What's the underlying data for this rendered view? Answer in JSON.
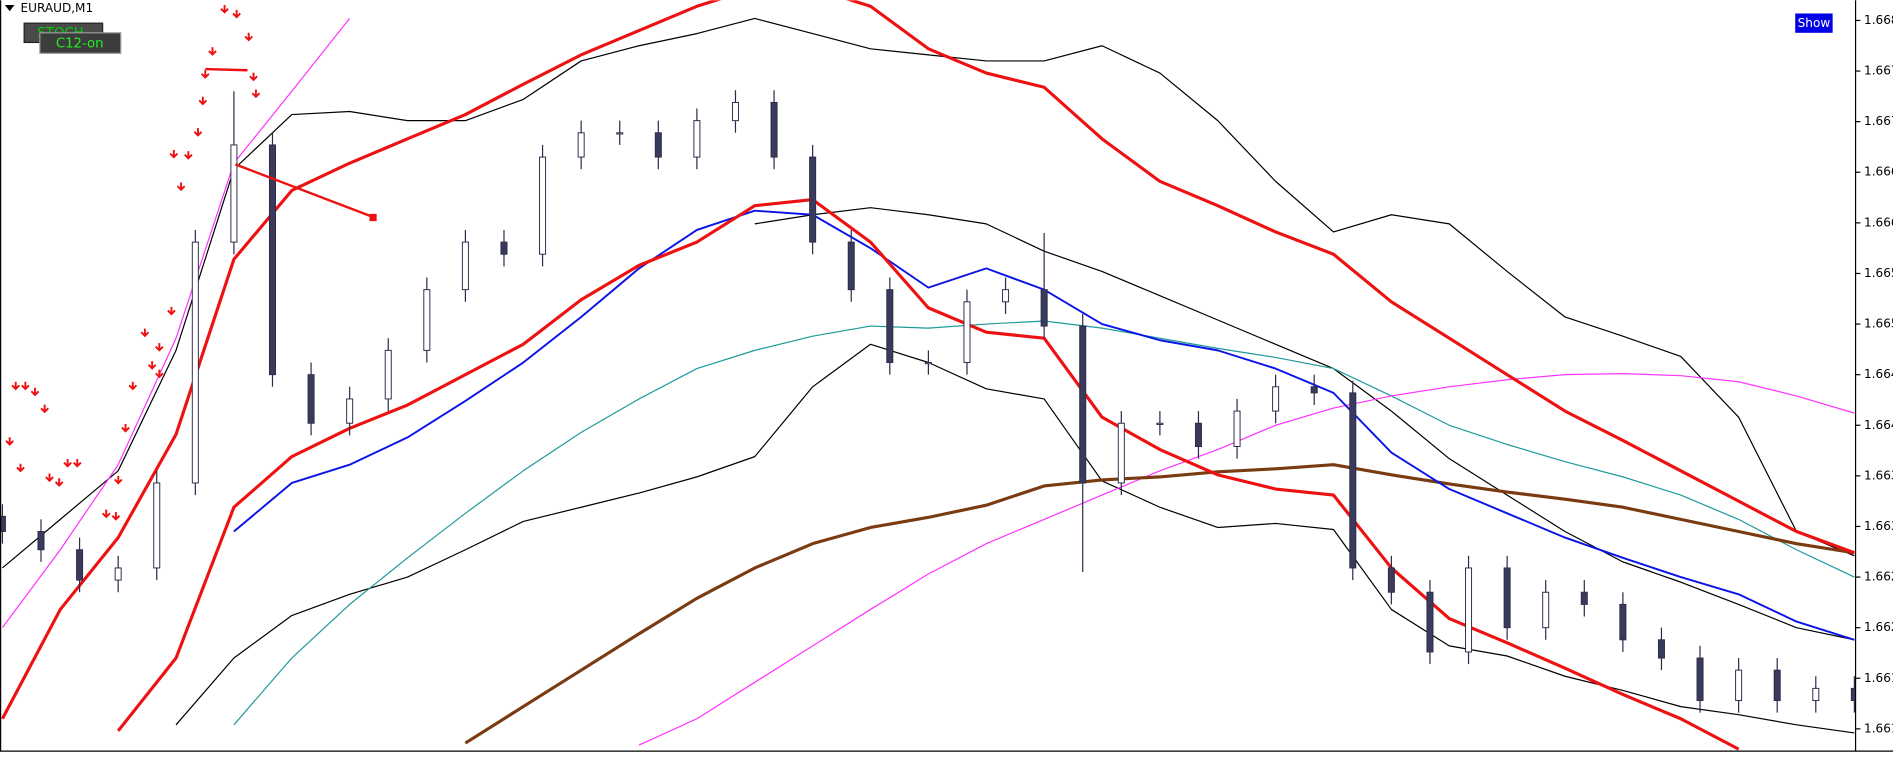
{
  "ui": {
    "symbol": "EURAUD,M1",
    "indicator_label": "STOCH",
    "button_label": "C12-on",
    "show_button": "Show"
  },
  "chart_data": {
    "type": "candlestick",
    "xlim": [
      0,
      192
    ],
    "ylim": [
      1.66078,
      1.6682
    ],
    "yticks": [
      1.668,
      {
        "value": 1.6675,
        "label": "1.667"
      },
      1.667,
      {
        "value": 1.6665,
        "label": "1.666"
      },
      1.666,
      {
        "value": 1.6655,
        "label": "1.665"
      },
      1.665,
      {
        "value": 1.6645,
        "label": "1.664"
      },
      1.664,
      {
        "value": 1.6635,
        "label": "1.663"
      },
      1.663,
      {
        "value": 1.6625,
        "label": "1.662"
      },
      1.662,
      {
        "value": 1.6615,
        "label": "1.661"
      },
      1.661
    ],
    "up_color": "#ffffff",
    "down_color": "#3a3a5c",
    "outline_color": "#2b2b4a",
    "x": [
      0,
      4,
      8,
      12,
      16,
      20,
      24,
      28,
      32,
      36,
      40,
      44,
      48,
      52,
      56,
      60,
      64,
      68,
      72,
      76,
      80,
      84,
      88,
      92,
      96,
      100,
      104,
      108,
      112,
      116,
      120,
      124,
      128,
      132,
      136,
      140,
      144,
      148,
      152,
      156,
      160,
      164,
      168,
      172,
      176,
      180,
      184,
      188,
      192
    ],
    "open": [
      1.6631,
      1.66295,
      1.66277,
      1.66247,
      1.66259,
      1.66343,
      1.66581,
      1.66677,
      1.6645,
      1.66402,
      1.66426,
      1.66474,
      1.66534,
      1.66581,
      1.66569,
      1.66665,
      1.66689,
      1.66689,
      1.66665,
      1.66701,
      1.66719,
      1.66665,
      1.66581,
      1.66534,
      1.66462,
      1.66462,
      1.66522,
      1.66534,
      1.66498,
      1.66343,
      1.66402,
      1.66402,
      1.66379,
      1.66414,
      1.66438,
      1.66432,
      1.66259,
      1.66235,
      1.66176,
      1.66259,
      1.662,
      1.66235,
      1.66223,
      1.66188,
      1.6617,
      1.66128,
      1.66158,
      1.66128,
      1.6614
    ],
    "high": [
      1.66322,
      1.66307,
      1.66289,
      1.66271,
      1.66355,
      1.66593,
      1.6673,
      1.66689,
      1.66462,
      1.66438,
      1.66486,
      1.66546,
      1.66593,
      1.66593,
      1.66677,
      1.66701,
      1.66701,
      1.66701,
      1.66713,
      1.66731,
      1.66731,
      1.66677,
      1.66593,
      1.66546,
      1.66474,
      1.66534,
      1.66546,
      1.6659,
      1.6651,
      1.66414,
      1.66414,
      1.66414,
      1.66426,
      1.6645,
      1.6645,
      1.66444,
      1.66271,
      1.66247,
      1.66271,
      1.66271,
      1.66247,
      1.66247,
      1.66235,
      1.662,
      1.66182,
      1.6617,
      1.6617,
      1.66152,
      1.66152
    ],
    "low": [
      1.66283,
      1.66265,
      1.66235,
      1.66235,
      1.66247,
      1.66331,
      1.66569,
      1.66438,
      1.6639,
      1.6639,
      1.66414,
      1.66462,
      1.66522,
      1.66557,
      1.66557,
      1.66653,
      1.66677,
      1.66653,
      1.66653,
      1.66689,
      1.66653,
      1.66569,
      1.66522,
      1.6645,
      1.6645,
      1.6645,
      1.6651,
      1.66486,
      1.66255,
      1.66331,
      1.6639,
      1.66367,
      1.66367,
      1.66402,
      1.6642,
      1.66247,
      1.66223,
      1.66164,
      1.66164,
      1.66188,
      1.66188,
      1.66211,
      1.66176,
      1.66158,
      1.66116,
      1.66116,
      1.66116,
      1.66116,
      1.66116
    ],
    "close": [
      1.66295,
      1.66277,
      1.66247,
      1.66259,
      1.66343,
      1.66581,
      1.66677,
      1.6645,
      1.66402,
      1.66426,
      1.66474,
      1.66534,
      1.66581,
      1.66569,
      1.66665,
      1.66689,
      1.66689,
      1.66665,
      1.66701,
      1.66719,
      1.66665,
      1.66581,
      1.66534,
      1.66462,
      1.66462,
      1.66522,
      1.66534,
      1.66498,
      1.66343,
      1.66402,
      1.66402,
      1.66379,
      1.66414,
      1.66438,
      1.66432,
      1.66259,
      1.66235,
      1.66176,
      1.66259,
      1.662,
      1.66235,
      1.66223,
      1.66188,
      1.6617,
      1.66128,
      1.66158,
      1.66128,
      1.6614,
      1.66128
    ],
    "overlays": {
      "type": "line",
      "x": [
        0,
        6,
        12,
        18,
        24,
        30,
        36,
        42,
        48,
        54,
        60,
        66,
        72,
        78,
        84,
        90,
        96,
        102,
        108,
        114,
        120,
        126,
        132,
        138,
        144,
        150,
        156,
        162,
        168,
        174,
        180,
        186,
        192
      ],
      "series": [
        {
          "color": "#000000",
          "values": [
            1.66259,
            1.66307,
            1.66355,
            1.66474,
            1.66653,
            1.66707,
            1.6671,
            1.66701,
            1.66701,
            1.66722,
            1.6676,
            1.66775,
            1.66787,
            1.66802,
            1.66787,
            1.66772,
            1.66766,
            1.6676,
            1.6676,
            1.66775,
            1.66748,
            1.66701,
            1.66641,
            1.66591,
            1.66608,
            1.66599,
            1.66552,
            1.66507,
            1.66488,
            1.66468,
            1.66408,
            1.66295,
            1.66271
          ]
        },
        {
          "color": "#000000",
          "values": [
            null,
            null,
            null,
            1.66104,
            1.6617,
            1.66212,
            1.66233,
            1.6625,
            1.66277,
            1.66305,
            1.66319,
            1.66333,
            1.66349,
            1.66369,
            1.66438,
            1.6648,
            1.66462,
            1.66436,
            1.66426,
            1.66345,
            1.66319,
            1.66299,
            1.66303,
            1.66297,
            1.66218,
            1.66182,
            1.66172,
            1.66152,
            1.66138,
            1.66122,
            1.66114,
            1.66104,
            1.66096
          ]
        },
        {
          "color": "#000000",
          "values": [
            null,
            null,
            null,
            null,
            null,
            null,
            null,
            null,
            null,
            null,
            null,
            null,
            null,
            1.66599,
            1.66608,
            1.66615,
            1.66608,
            1.66599,
            1.66572,
            1.66552,
            1.66528,
            1.66504,
            1.6648,
            1.66456,
            1.66414,
            1.66367,
            1.66331,
            1.66295,
            1.66265,
            1.66245,
            1.66223,
            1.662,
            1.66188
          ]
        },
        {
          "color": "#1f9a9a",
          "values": [
            null,
            null,
            null,
            null,
            1.66104,
            1.6617,
            1.66223,
            1.66269,
            1.66313,
            1.66355,
            1.66393,
            1.66426,
            1.66456,
            1.66474,
            1.66488,
            1.66498,
            1.66496,
            1.665,
            1.66503,
            1.66496,
            1.66486,
            1.66476,
            1.66467,
            1.66456,
            1.66429,
            1.664,
            1.66381,
            1.66364,
            1.66349,
            1.66331,
            1.66307,
            1.66277,
            1.6625
          ]
        },
        {
          "color": "#ff33ff",
          "values": [
            1.662,
            1.66277,
            1.66361,
            1.66486,
            1.66659,
            1.6673,
            1.66802,
            null,
            null,
            null,
            null,
            1.66084,
            1.6611,
            1.66146,
            1.66182,
            1.66218,
            1.66253,
            1.66283,
            1.66307,
            1.66331,
            1.66355,
            1.66376,
            1.664,
            1.66417,
            1.66429,
            1.66438,
            1.66445,
            1.6645,
            1.66451,
            1.66449,
            1.66443,
            1.66429,
            1.66412
          ]
        },
        {
          "color": "#7a3b12",
          "values": [
            null,
            null,
            null,
            null,
            null,
            null,
            null,
            null,
            1.66086,
            1.66122,
            1.66158,
            1.66194,
            1.66229,
            1.66259,
            1.66283,
            1.66299,
            1.66309,
            1.66321,
            1.6634,
            1.66346,
            1.66349,
            1.66354,
            1.66357,
            1.66361,
            1.66351,
            1.66342,
            1.66334,
            1.66327,
            1.66319,
            1.66307,
            1.66295,
            1.66283,
            1.66274
          ]
        },
        {
          "color": "#0a14e6",
          "values": [
            null,
            null,
            null,
            null,
            1.66295,
            1.66343,
            1.66361,
            1.66388,
            1.66424,
            1.66462,
            1.66507,
            1.66555,
            1.66593,
            1.66612,
            1.66608,
            1.66575,
            1.66536,
            1.66555,
            1.66534,
            1.665,
            1.66484,
            1.66474,
            1.66456,
            1.66432,
            1.66373,
            1.66337,
            1.66313,
            1.66289,
            1.66269,
            1.6625,
            1.66233,
            1.66206,
            1.66188
          ]
        },
        {
          "color": "#ee1111",
          "values": [
            1.6611,
            1.66218,
            1.66289,
            1.66391,
            1.66564,
            1.66632,
            1.66659,
            1.66683,
            1.66707,
            1.66737,
            1.66766,
            1.6679,
            1.66814,
            1.66832,
            1.66832,
            1.66814,
            1.66772,
            1.66748,
            1.66734,
            1.66683,
            1.66641,
            1.66617,
            1.66591,
            1.66569,
            1.66522,
            1.66486,
            1.6645,
            1.66414,
            1.66385,
            1.66355,
            1.66325,
            1.66295,
            1.66274
          ]
        },
        {
          "color": "#ee1111",
          "values": [
            null,
            null,
            1.66098,
            1.6617,
            1.66319,
            1.66369,
            1.66397,
            1.6642,
            1.6645,
            1.6648,
            1.66524,
            1.66558,
            1.66581,
            1.66617,
            1.66623,
            1.66581,
            1.66516,
            1.66492,
            1.66486,
            1.66408,
            1.66376,
            1.66351,
            1.66337,
            1.66331,
            1.66259,
            1.66209,
            1.66185,
            1.6616,
            1.66134,
            1.6611,
            1.6608,
            null,
            null
          ]
        }
      ]
    }
  }
}
